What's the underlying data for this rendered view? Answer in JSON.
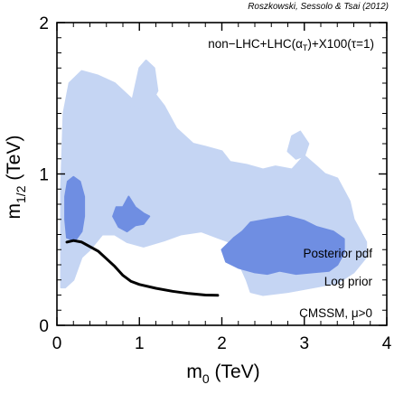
{
  "chart_data": {
    "type": "area",
    "credit": "Roszkowski, Sessolo & Tsai (2012)",
    "xlabel": {
      "main": "m",
      "sub": "0",
      "unit": " (TeV)"
    },
    "ylabel": {
      "main": "m",
      "sub": "1/2",
      "unit": " (TeV)"
    },
    "xlim": [
      0,
      4
    ],
    "ylim": [
      0,
      2
    ],
    "x_ticks": [
      0,
      1,
      2,
      3,
      4
    ],
    "x_tick_labels": [
      "0",
      "1",
      "2",
      "3",
      "4"
    ],
    "y_ticks": [
      0,
      1,
      2
    ],
    "y_tick_labels": [
      "0",
      "1",
      "2"
    ],
    "grid": false,
    "annotations": {
      "analysis": "non−LHC+LHC(α",
      "analysis_sub": "T",
      "analysis_rest": ")+X100(τ=1)",
      "pdf": "Posterior pdf",
      "prior": "Log prior",
      "model": "CMSSM, μ>0"
    },
    "colors": {
      "region_95": "#c5d5f3",
      "region_68": "#6f8ee2",
      "limit_line": "#000000",
      "frame": "#000000"
    },
    "series": [
      {
        "role": "95% credible region",
        "polygons": [
          [
            [
              0.05,
              0.25
            ],
            [
              0.05,
              0.9
            ],
            [
              0.08,
              1.4
            ],
            [
              0.15,
              1.6
            ],
            [
              0.3,
              1.68
            ],
            [
              0.5,
              1.65
            ],
            [
              0.7,
              1.6
            ],
            [
              0.9,
              1.5
            ],
            [
              1.0,
              1.42
            ],
            [
              1.05,
              1.47
            ],
            [
              1.2,
              1.52
            ],
            [
              1.3,
              1.45
            ],
            [
              1.45,
              1.3
            ],
            [
              1.65,
              1.2
            ],
            [
              1.8,
              1.18
            ],
            [
              2.0,
              1.15
            ],
            [
              2.1,
              1.08
            ],
            [
              2.3,
              1.06
            ],
            [
              2.5,
              1.03
            ],
            [
              2.65,
              1.05
            ],
            [
              2.85,
              1.03
            ],
            [
              3.0,
              1.12
            ],
            [
              3.15,
              1.05
            ],
            [
              3.25,
              1.0
            ],
            [
              3.4,
              0.97
            ],
            [
              3.55,
              0.82
            ],
            [
              3.6,
              0.7
            ],
            [
              3.75,
              0.55
            ],
            [
              3.75,
              0.45
            ],
            [
              3.6,
              0.35
            ],
            [
              3.4,
              0.28
            ],
            [
              3.1,
              0.25
            ],
            [
              2.8,
              0.22
            ],
            [
              2.5,
              0.2
            ],
            [
              2.35,
              0.22
            ],
            [
              2.3,
              0.3
            ],
            [
              2.2,
              0.42
            ],
            [
              2.1,
              0.55
            ],
            [
              1.95,
              0.58
            ],
            [
              1.75,
              0.62
            ],
            [
              1.5,
              0.6
            ],
            [
              1.3,
              0.56
            ],
            [
              1.05,
              0.52
            ],
            [
              0.85,
              0.55
            ],
            [
              0.7,
              0.6
            ],
            [
              0.55,
              0.6
            ],
            [
              0.4,
              0.5
            ],
            [
              0.3,
              0.45
            ],
            [
              0.2,
              0.3
            ],
            [
              0.1,
              0.25
            ]
          ],
          [
            [
              0.9,
              1.45
            ],
            [
              1.0,
              1.7
            ],
            [
              1.08,
              1.75
            ],
            [
              1.18,
              1.7
            ],
            [
              1.22,
              1.55
            ],
            [
              1.12,
              1.45
            ],
            [
              1.0,
              1.42
            ]
          ],
          [
            [
              2.8,
              1.15
            ],
            [
              2.85,
              1.25
            ],
            [
              2.95,
              1.28
            ],
            [
              3.05,
              1.2
            ],
            [
              3.0,
              1.12
            ],
            [
              2.9,
              1.1
            ]
          ]
        ]
      },
      {
        "role": "68% credible region",
        "polygons": [
          [
            [
              0.12,
              0.58
            ],
            [
              0.1,
              0.7
            ],
            [
              0.1,
              0.85
            ],
            [
              0.13,
              0.95
            ],
            [
              0.2,
              0.98
            ],
            [
              0.28,
              0.95
            ],
            [
              0.33,
              0.85
            ],
            [
              0.33,
              0.72
            ],
            [
              0.3,
              0.62
            ],
            [
              0.22,
              0.56
            ]
          ],
          [
            [
              0.68,
              0.72
            ],
            [
              0.72,
              0.78
            ],
            [
              0.8,
              0.78
            ],
            [
              0.87,
              0.85
            ],
            [
              0.95,
              0.78
            ],
            [
              1.05,
              0.74
            ],
            [
              1.12,
              0.72
            ],
            [
              1.05,
              0.67
            ],
            [
              0.95,
              0.66
            ],
            [
              0.85,
              0.62
            ],
            [
              0.75,
              0.65
            ]
          ],
          [
            [
              2.0,
              0.5
            ],
            [
              2.15,
              0.58
            ],
            [
              2.25,
              0.62
            ],
            [
              2.35,
              0.68
            ],
            [
              2.55,
              0.7
            ],
            [
              2.8,
              0.72
            ],
            [
              3.0,
              0.69
            ],
            [
              3.15,
              0.65
            ],
            [
              3.35,
              0.62
            ],
            [
              3.48,
              0.57
            ],
            [
              3.48,
              0.48
            ],
            [
              3.4,
              0.4
            ],
            [
              3.3,
              0.36
            ],
            [
              3.1,
              0.35
            ],
            [
              2.9,
              0.34
            ],
            [
              2.7,
              0.36
            ],
            [
              2.55,
              0.34
            ],
            [
              2.4,
              0.35
            ],
            [
              2.2,
              0.38
            ],
            [
              2.05,
              0.42
            ]
          ]
        ]
      },
      {
        "role": "LEP/theory exclusion boundary",
        "type": "line",
        "x": [
          0.12,
          0.2,
          0.3,
          0.4,
          0.5,
          0.6,
          0.7,
          0.8,
          0.9,
          1.0,
          1.2,
          1.4,
          1.6,
          1.8,
          1.95
        ],
        "y": [
          0.55,
          0.56,
          0.55,
          0.52,
          0.49,
          0.44,
          0.39,
          0.33,
          0.29,
          0.27,
          0.245,
          0.225,
          0.21,
          0.2,
          0.198
        ]
      }
    ]
  }
}
